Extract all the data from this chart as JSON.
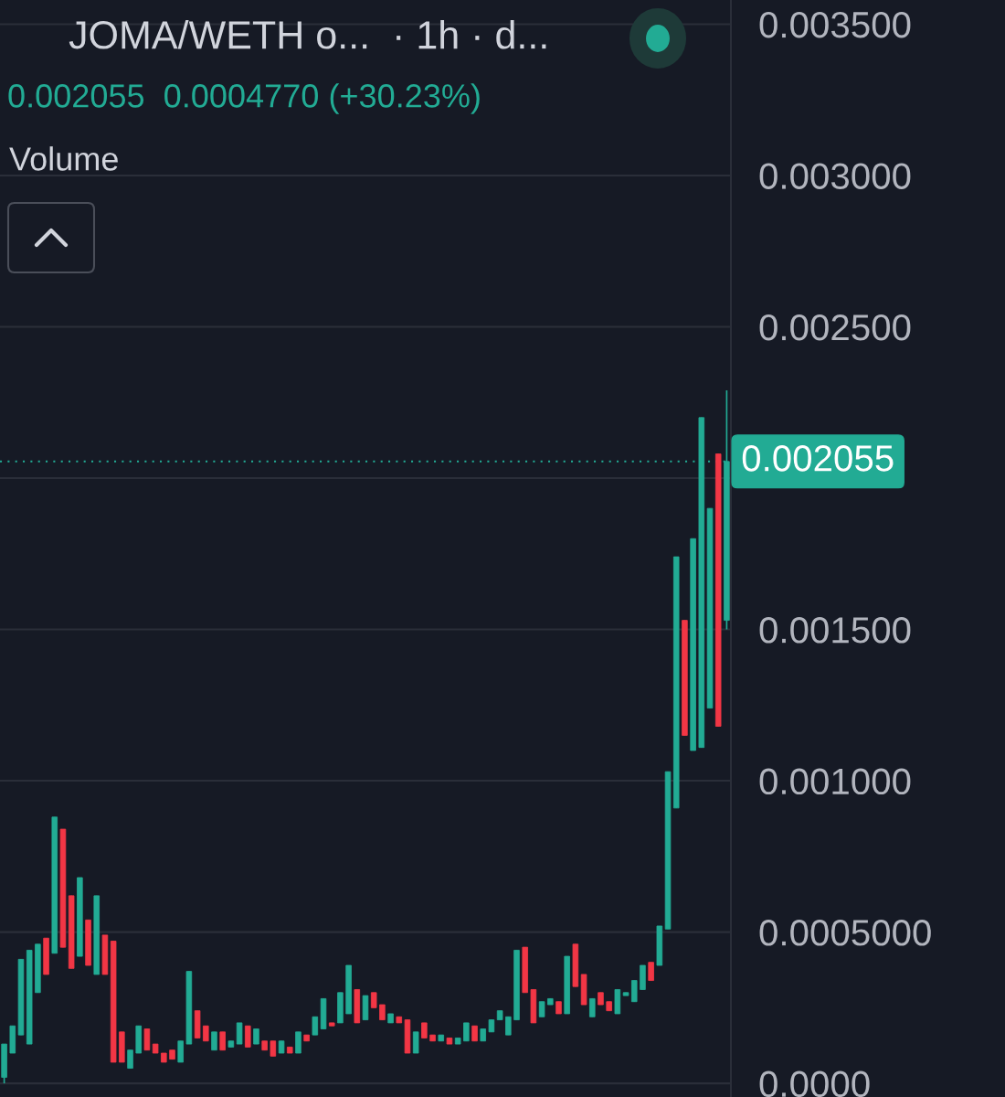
{
  "chart_data": {
    "type": "candlestick",
    "title": "JOMA/WETH o...  · 1h · d...",
    "subtitle": "0.002055  0.0004770 (+30.23%)",
    "annotations": [
      "Volume"
    ],
    "categories": [
      null,
      null,
      null,
      null,
      null,
      null,
      null,
      null,
      null,
      null,
      null,
      null,
      null,
      null,
      null,
      null,
      null,
      null,
      null,
      null,
      null,
      null,
      null,
      null,
      null,
      null,
      null,
      null,
      null,
      null,
      null,
      null,
      null,
      null,
      null,
      null,
      null,
      null,
      null,
      null,
      null,
      null,
      null,
      null,
      null,
      null,
      null,
      null,
      null,
      null,
      null,
      null,
      null,
      null,
      null,
      null,
      null,
      null,
      null,
      null,
      null,
      null,
      null,
      null,
      null,
      null,
      null,
      null,
      null,
      null,
      null,
      null,
      null,
      null,
      null,
      null,
      null,
      null,
      null,
      null,
      null,
      null,
      null,
      null,
      null,
      null,
      null
    ],
    "ohlc": [
      [
        2e-05,
        0.00013,
        0.0,
        0.00013
      ],
      [
        0.0001,
        0.00019,
        0.0001,
        0.00019
      ],
      [
        0.00016,
        0.00041,
        0.00016,
        0.00041
      ],
      [
        0.00013,
        0.00044,
        0.00013,
        0.00044
      ],
      [
        0.0003,
        0.00046,
        0.0003,
        0.00046
      ],
      [
        0.00048,
        0.00048,
        0.00036,
        0.00036
      ],
      [
        0.00043,
        0.00088,
        0.00043,
        0.00088
      ],
      [
        0.00084,
        0.00084,
        0.00045,
        0.00045
      ],
      [
        0.00062,
        0.00062,
        0.00038,
        0.00038
      ],
      [
        0.00042,
        0.00068,
        0.00042,
        0.00068
      ],
      [
        0.00054,
        0.00054,
        0.00039,
        0.00039
      ],
      [
        0.00036,
        0.00062,
        0.00036,
        0.00062
      ],
      [
        0.00049,
        0.00049,
        0.00036,
        0.00036
      ],
      [
        0.00047,
        0.00047,
        7e-05,
        7e-05
      ],
      [
        0.00017,
        0.00017,
        7e-05,
        7e-05
      ],
      [
        5e-05,
        0.00011,
        5e-05,
        0.00011
      ],
      [
        0.0001,
        0.00019,
        0.0001,
        0.00019
      ],
      [
        0.00018,
        0.00018,
        0.00011,
        0.00011
      ],
      [
        0.00013,
        0.00013,
        0.0001,
        0.0001
      ],
      [
        0.0001,
        0.0001,
        7e-05,
        7e-05
      ],
      [
        0.00011,
        0.00011,
        8e-05,
        8e-05
      ],
      [
        7e-05,
        0.00014,
        7e-05,
        0.00014
      ],
      [
        0.00013,
        0.00037,
        0.00013,
        0.00037
      ],
      [
        0.00024,
        0.00024,
        0.00015,
        0.00015
      ],
      [
        0.00019,
        0.00019,
        0.00014,
        0.00014
      ],
      [
        0.00011,
        0.00017,
        0.00011,
        0.00017
      ],
      [
        0.00017,
        0.00017,
        0.00011,
        0.00011
      ],
      [
        0.00012,
        0.00014,
        0.00012,
        0.00014
      ],
      [
        0.00013,
        0.0002,
        0.00013,
        0.0002
      ],
      [
        0.00019,
        0.00019,
        0.00012,
        0.00012
      ],
      [
        0.00013,
        0.00018,
        0.00013,
        0.00018
      ],
      [
        0.00014,
        0.00014,
        0.00011,
        0.00011
      ],
      [
        0.00014,
        0.00014,
        9e-05,
        9e-05
      ],
      [
        0.0001,
        0.00014,
        0.0001,
        0.00014
      ],
      [
        0.00012,
        0.00012,
        0.0001,
        0.0001
      ],
      [
        0.0001,
        0.00017,
        0.0001,
        0.00017
      ],
      [
        0.00016,
        0.00016,
        0.00014,
        0.00014
      ],
      [
        0.00016,
        0.00022,
        0.00016,
        0.00022
      ],
      [
        0.00018,
        0.00028,
        0.00018,
        0.00028
      ],
      [
        0.0002,
        0.0002,
        0.00019,
        0.00019
      ],
      [
        0.0002,
        0.0003,
        0.0002,
        0.0003
      ],
      [
        0.00023,
        0.00039,
        0.00023,
        0.00039
      ],
      [
        0.00031,
        0.00031,
        0.0002,
        0.0002
      ],
      [
        0.00021,
        0.00029,
        0.00021,
        0.00029
      ],
      [
        0.0003,
        0.0003,
        0.00025,
        0.00025
      ],
      [
        0.00026,
        0.00026,
        0.00021,
        0.00021
      ],
      [
        0.0002,
        0.00023,
        0.0002,
        0.00023
      ],
      [
        0.00022,
        0.00022,
        0.0002,
        0.0002
      ],
      [
        0.00021,
        0.00021,
        0.0001,
        0.0001
      ],
      [
        0.0001,
        0.00017,
        0.0001,
        0.00017
      ],
      [
        0.0002,
        0.0002,
        0.00015,
        0.00015
      ],
      [
        0.00016,
        0.00016,
        0.00014,
        0.00014
      ],
      [
        0.00014,
        0.00016,
        0.00014,
        0.00016
      ],
      [
        0.00015,
        0.00015,
        0.00013,
        0.00013
      ],
      [
        0.00013,
        0.00015,
        0.00013,
        0.00015
      ],
      [
        0.00014,
        0.0002,
        0.00014,
        0.0002
      ],
      [
        0.00019,
        0.00019,
        0.00014,
        0.00014
      ],
      [
        0.00014,
        0.00018,
        0.00014,
        0.00018
      ],
      [
        0.00017,
        0.00021,
        0.00017,
        0.00021
      ],
      [
        0.00021,
        0.00024,
        0.00021,
        0.00024
      ],
      [
        0.00016,
        0.00022,
        0.00016,
        0.00022
      ],
      [
        0.00021,
        0.00044,
        0.00021,
        0.00044
      ],
      [
        0.00045,
        0.00045,
        0.0003,
        0.0003
      ],
      [
        0.00031,
        0.00031,
        0.0002,
        0.0002
      ],
      [
        0.00022,
        0.00027,
        0.00022,
        0.00027
      ],
      [
        0.00026,
        0.00028,
        0.00026,
        0.00028
      ],
      [
        0.00027,
        0.00027,
        0.00023,
        0.00023
      ],
      [
        0.00023,
        0.00042,
        0.00023,
        0.00042
      ],
      [
        0.00046,
        0.00046,
        0.00032,
        0.00032
      ],
      [
        0.00036,
        0.00036,
        0.00026,
        0.00026
      ],
      [
        0.00022,
        0.00028,
        0.00022,
        0.00028
      ],
      [
        0.0003,
        0.0003,
        0.00026,
        0.00026
      ],
      [
        0.00027,
        0.00027,
        0.00024,
        0.00024
      ],
      [
        0.00023,
        0.00031,
        0.00023,
        0.00031
      ],
      [
        0.00029,
        0.0003,
        0.00029,
        0.0003
      ],
      [
        0.00027,
        0.00034,
        0.00027,
        0.00034
      ],
      [
        0.00031,
        0.00039,
        0.00031,
        0.00039
      ],
      [
        0.0004,
        0.0004,
        0.00034,
        0.00034
      ],
      [
        0.00039,
        0.00052,
        0.00039,
        0.00052
      ],
      [
        0.00051,
        0.00103,
        0.00051,
        0.00103
      ],
      [
        0.00091,
        0.00174,
        0.00091,
        0.00174
      ],
      [
        0.00153,
        0.00153,
        0.00115,
        0.00115
      ],
      [
        0.0011,
        0.0018,
        0.0011,
        0.0018
      ],
      [
        0.00111,
        0.0022,
        0.00111,
        0.0022
      ],
      [
        0.00124,
        0.0019,
        0.00124,
        0.0019
      ],
      [
        0.00208,
        0.00208,
        0.00118,
        0.00118
      ],
      [
        0.00153,
        0.00229,
        0.0015,
        0.002055
      ]
    ],
    "colors": [
      "#22ab94",
      "#22ab94",
      "#22ab94",
      "#22ab94",
      "#22ab94",
      "#f23645",
      "#22ab94",
      "#f23645",
      "#f23645",
      "#22ab94",
      "#f23645",
      "#22ab94",
      "#f23645",
      "#f23645",
      "#f23645",
      "#22ab94",
      "#22ab94",
      "#f23645",
      "#f23645",
      "#f23645",
      "#f23645",
      "#22ab94",
      "#22ab94",
      "#f23645",
      "#f23645",
      "#22ab94",
      "#f23645",
      "#22ab94",
      "#22ab94",
      "#f23645",
      "#22ab94",
      "#f23645",
      "#f23645",
      "#22ab94",
      "#f23645",
      "#22ab94",
      "#f23645",
      "#22ab94",
      "#22ab94",
      "#f23645",
      "#22ab94",
      "#22ab94",
      "#f23645",
      "#22ab94",
      "#f23645",
      "#f23645",
      "#22ab94",
      "#f23645",
      "#f23645",
      "#22ab94",
      "#f23645",
      "#f23645",
      "#22ab94",
      "#f23645",
      "#22ab94",
      "#22ab94",
      "#f23645",
      "#22ab94",
      "#22ab94",
      "#22ab94",
      "#22ab94",
      "#22ab94",
      "#f23645",
      "#f23645",
      "#22ab94",
      "#22ab94",
      "#f23645",
      "#22ab94",
      "#f23645",
      "#f23645",
      "#22ab94",
      "#f23645",
      "#f23645",
      "#22ab94",
      "#22ab94",
      "#22ab94",
      "#22ab94",
      "#f23645",
      "#22ab94",
      "#22ab94",
      "#22ab94",
      "#f23645",
      "#22ab94",
      "#22ab94",
      "#22ab94",
      "#f23645",
      "#22ab94"
    ],
    "ylim": [
      -4.5e-05,
      0.00358
    ],
    "yticks": [
      {
        "value": 0,
        "label": "0.0000"
      },
      {
        "value": 0.0005,
        "label": "0.0005000"
      },
      {
        "value": 0.001,
        "label": "0.001000"
      },
      {
        "value": 0.0015,
        "label": "0.001500"
      },
      {
        "value": 0.002,
        "label": null
      },
      {
        "value": 0.0025,
        "label": "0.002500"
      },
      {
        "value": 0.003,
        "label": "0.003000"
      },
      {
        "value": 0.0035,
        "label": "0.003500"
      }
    ],
    "ref_lines": [
      {
        "axis": "y",
        "value": 0.002055,
        "label": "0.002055",
        "color": "#22ab94",
        "line_style": "dotted"
      }
    ],
    "grid": "y",
    "tick_labels": "y"
  }
}
